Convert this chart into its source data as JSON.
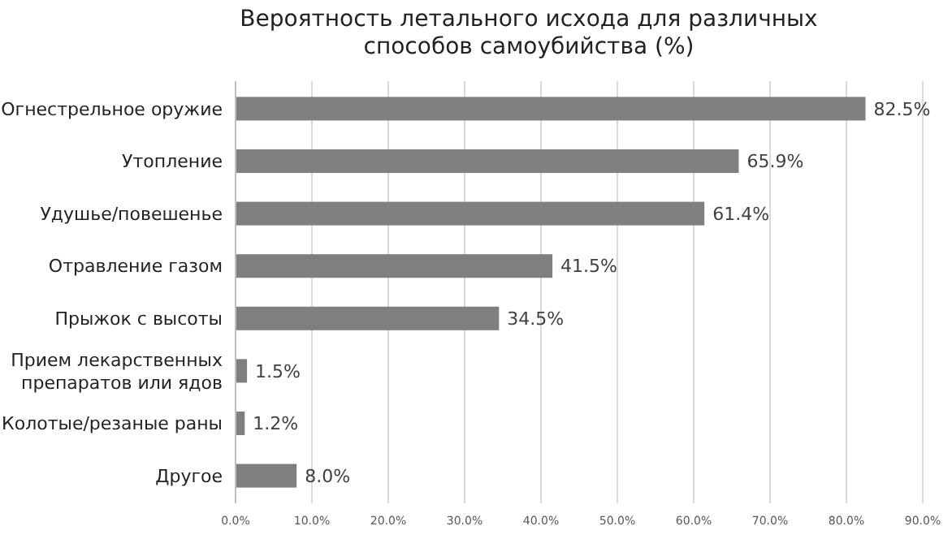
{
  "chart_data": {
    "type": "bar",
    "orientation": "horizontal",
    "title": "Вероятность летального исхода для различных способов  самоубийства (%)",
    "categories": [
      "Огнестрельное оружие",
      "Утопление",
      "Удушье/повешенье",
      "Отравление газом",
      "Прыжок с высоты",
      "Прием лекарственных препаратов или ядов",
      "Колотые/резаные раны",
      "Другое"
    ],
    "values": [
      82.5,
      65.9,
      61.4,
      41.5,
      34.5,
      1.5,
      1.2,
      8.0
    ],
    "value_labels": [
      "82.5%",
      "65.9%",
      "61.4%",
      "41.5%",
      "34.5%",
      "1.5%",
      "1.2%",
      "8.0%"
    ],
    "color": "#7f7f7f",
    "xlim": [
      0,
      90
    ],
    "xticks": [
      {
        "value": 0,
        "label": "0.0%"
      },
      {
        "value": 10,
        "label": "10.0%"
      },
      {
        "value": 20,
        "label": "20.0%"
      },
      {
        "value": 30,
        "label": "30.0%"
      },
      {
        "value": 40,
        "label": "40.0%"
      },
      {
        "value": 50,
        "label": "50.0%"
      },
      {
        "value": 60,
        "label": "60.0%"
      },
      {
        "value": 70,
        "label": "70.0%"
      },
      {
        "value": 80,
        "label": "80.0%"
      },
      {
        "value": 90,
        "label": "90.0%"
      }
    ],
    "grid": "x"
  }
}
